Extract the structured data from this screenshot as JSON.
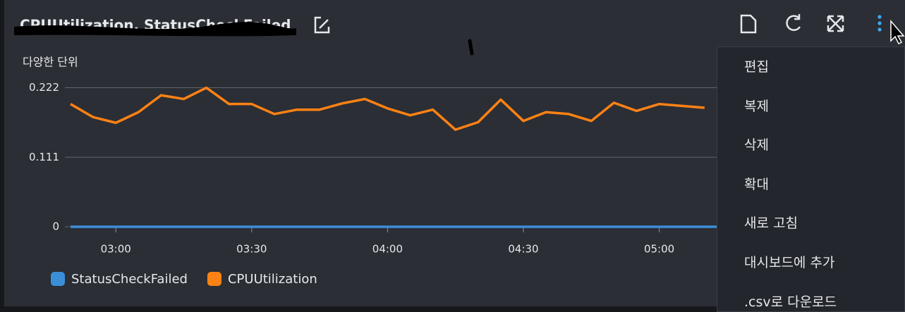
{
  "widget": {
    "title": "CPUUtilization, StatusCheckFailed",
    "menu": [
      "편집",
      "복제",
      "삭제",
      "확대",
      "새로 고침",
      "대시보드에 추가",
      ".csv로 다운로드"
    ]
  },
  "chart_data": {
    "type": "line",
    "y_label": "다양한 단위",
    "categories": [
      null,
      null,
      "03:00",
      null,
      null,
      null,
      null,
      null,
      "03:30",
      null,
      null,
      null,
      null,
      null,
      "04:00",
      null,
      null,
      null,
      null,
      null,
      "04:30",
      null,
      null,
      null,
      null,
      null,
      "05:00",
      null,
      null
    ],
    "series": [
      {
        "name": "StatusCheckFailed",
        "color": "#3b8fd9",
        "values": [
          0,
          0,
          0,
          0,
          0,
          0,
          0,
          0,
          0,
          0,
          0,
          0,
          0,
          0,
          0,
          0,
          0,
          0,
          0,
          0,
          0,
          0,
          0,
          0,
          0,
          0,
          0,
          0,
          0
        ]
      },
      {
        "name": "CPUUtilization",
        "color": "#ff8214",
        "values": [
          0.196,
          0.175,
          0.166,
          0.183,
          0.21,
          0.204,
          0.222,
          0.196,
          0.196,
          0.18,
          0.187,
          0.187,
          0.197,
          0.204,
          0.189,
          0.178,
          0.187,
          0.155,
          0.167,
          0.203,
          0.169,
          0.183,
          0.18,
          0.169,
          0.198,
          0.185,
          0.196,
          0.193,
          0.19
        ]
      }
    ],
    "ylim": [
      0,
      0.235
    ],
    "yticks": [
      0,
      0.111,
      0.222
    ],
    "grid": true
  }
}
